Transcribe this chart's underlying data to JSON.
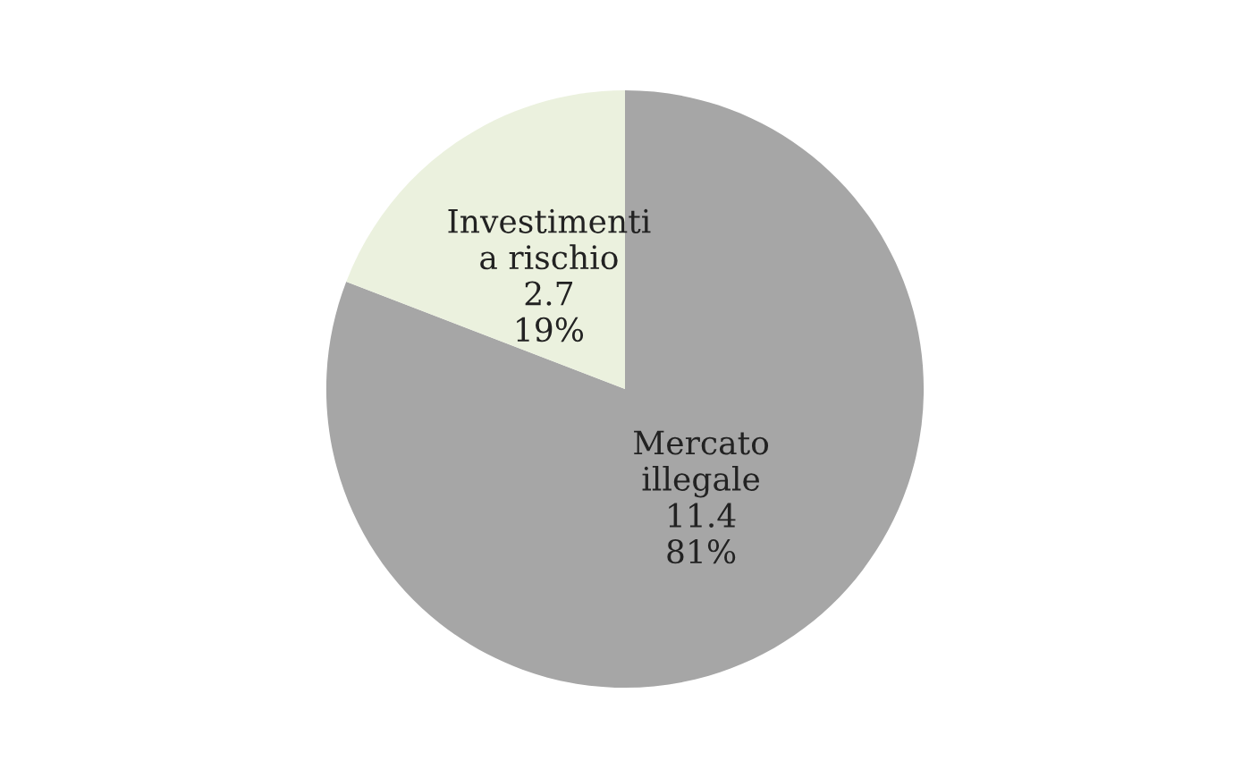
{
  "chart_data": {
    "type": "pie",
    "categories": [
      "Mercato illegale",
      "Investimenti a rischio"
    ],
    "values": [
      11.4,
      2.7
    ],
    "colors": [
      "#a6a6a6",
      "#ebf1de"
    ],
    "value_labels": [
      "11.4\n81%",
      "2.7\n19%"
    ],
    "legend": false
  }
}
